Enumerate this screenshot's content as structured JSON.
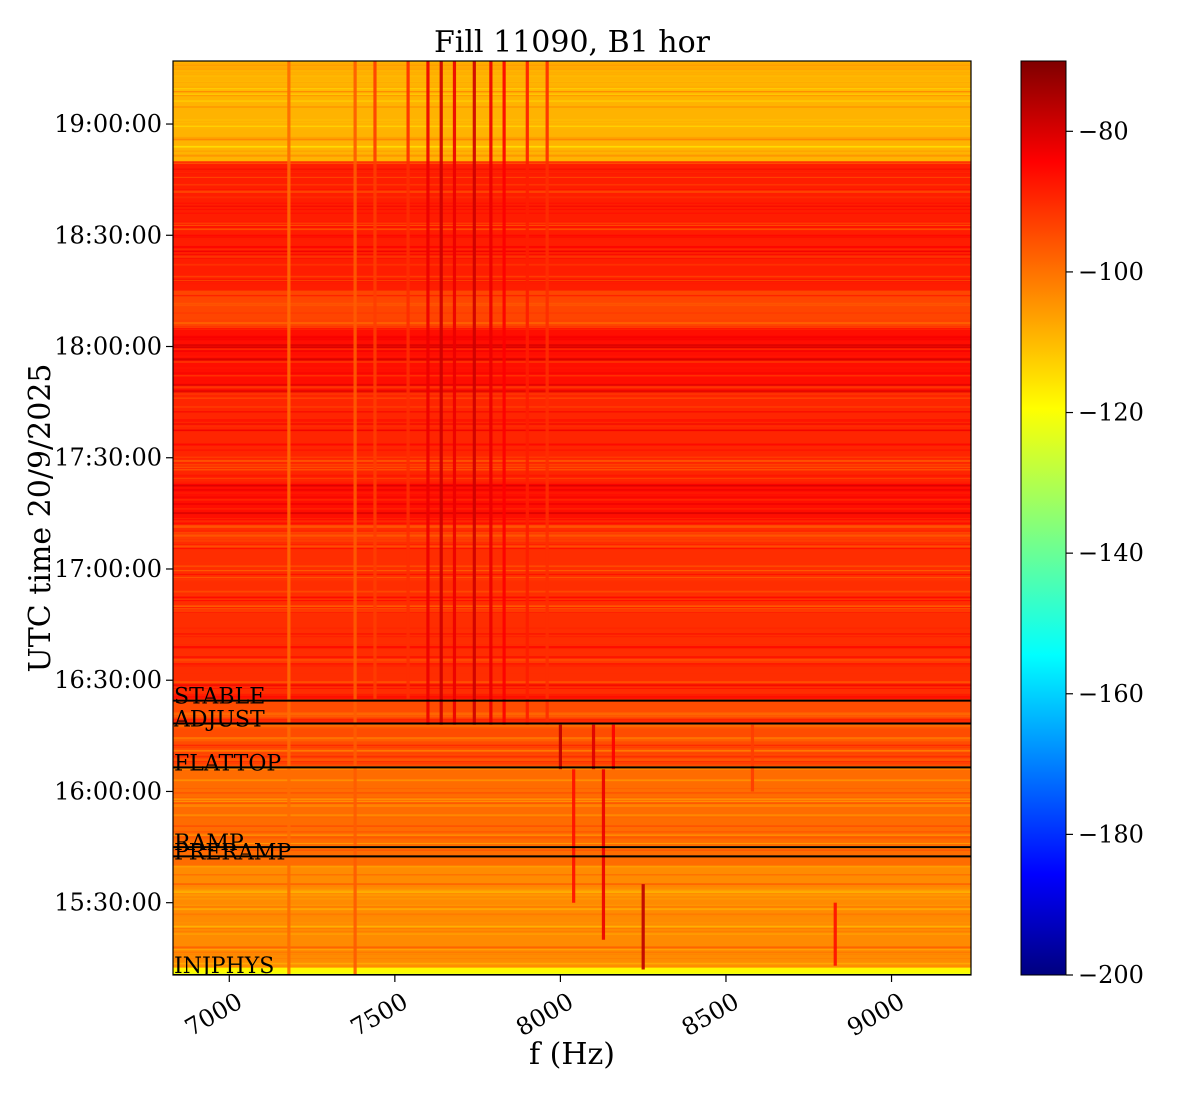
{
  "chart_data": {
    "type": "heatmap",
    "title": "Fill 11090, B1 hor",
    "xlabel": "f (Hz)",
    "ylabel": "UTC time 20/9/2025",
    "xlim": [
      6830,
      9240
    ],
    "ylim": [
      "15:10:30",
      "19:17:00"
    ],
    "x_ticks": [
      {
        "value": 7000,
        "label": "7000"
      },
      {
        "value": 7500,
        "label": "7500"
      },
      {
        "value": 8000,
        "label": "8000"
      },
      {
        "value": 8500,
        "label": "8500"
      },
      {
        "value": 9000,
        "label": "9000"
      }
    ],
    "y_ticks": [
      {
        "value": "15:30:00",
        "label": "15:30:00"
      },
      {
        "value": "16:00:00",
        "label": "16:00:00"
      },
      {
        "value": "16:30:00",
        "label": "16:30:00"
      },
      {
        "value": "17:00:00",
        "label": "17:00:00"
      },
      {
        "value": "17:30:00",
        "label": "17:30:00"
      },
      {
        "value": "18:00:00",
        "label": "18:00:00"
      },
      {
        "value": "18:30:00",
        "label": "18:30:00"
      },
      {
        "value": "19:00:00",
        "label": "19:00:00"
      }
    ],
    "colorbar": {
      "colormap": "jet",
      "range": [
        -200,
        -70
      ],
      "ticks": [
        {
          "value": -80,
          "label": "−80"
        },
        {
          "value": -100,
          "label": "−100"
        },
        {
          "value": -120,
          "label": "−120"
        },
        {
          "value": -140,
          "label": "−140"
        },
        {
          "value": -160,
          "label": "−160"
        },
        {
          "value": -180,
          "label": "−180"
        },
        {
          "value": -200,
          "label": "−200"
        }
      ]
    },
    "phase_markers": [
      {
        "label": "STABLE",
        "time": "16:24:30"
      },
      {
        "label": "ADJUST",
        "time": "16:18:20"
      },
      {
        "label": "FLATTOP",
        "time": "16:06:30"
      },
      {
        "label": "RAMP",
        "time": "15:45:00"
      },
      {
        "label": "PRERAMP",
        "time": "15:42:30"
      },
      {
        "label": "INJPHYS",
        "time": "15:10:30"
      }
    ],
    "intensity_bands": [
      {
        "start": "15:10:30",
        "end": "15:12:30",
        "level": -118
      },
      {
        "start": "15:12:30",
        "end": "15:40:00",
        "level": -104
      },
      {
        "start": "15:40:00",
        "end": "16:06:30",
        "level": -100
      },
      {
        "start": "16:06:30",
        "end": "16:25:00",
        "level": -96
      },
      {
        "start": "16:25:00",
        "end": "17:12:00",
        "level": -92
      },
      {
        "start": "17:12:00",
        "end": "17:23:00",
        "level": -88
      },
      {
        "start": "17:23:00",
        "end": "17:48:00",
        "level": -91
      },
      {
        "start": "17:48:00",
        "end": "18:05:00",
        "level": -88
      },
      {
        "start": "18:05:00",
        "end": "18:15:00",
        "level": -95
      },
      {
        "start": "18:15:00",
        "end": "18:50:00",
        "level": -90
      },
      {
        "start": "18:50:00",
        "end": "19:17:00",
        "level": -109
      }
    ],
    "spectral_lines": [
      {
        "f": 7180,
        "t0": "15:10:30",
        "t1": "19:17:00",
        "level": -100
      },
      {
        "f": 7380,
        "t0": "15:10:30",
        "t1": "19:17:00",
        "level": -98
      },
      {
        "f": 7440,
        "t0": "16:25:00",
        "t1": "19:17:00",
        "level": -94
      },
      {
        "f": 7540,
        "t0": "16:25:00",
        "t1": "19:17:00",
        "level": -92
      },
      {
        "f": 7600,
        "t0": "16:18:00",
        "t1": "19:17:00",
        "level": -84
      },
      {
        "f": 7640,
        "t0": "16:18:00",
        "t1": "19:17:00",
        "level": -80
      },
      {
        "f": 7680,
        "t0": "16:18:00",
        "t1": "19:17:00",
        "level": -84
      },
      {
        "f": 7740,
        "t0": "16:18:00",
        "t1": "19:17:00",
        "level": -80
      },
      {
        "f": 7790,
        "t0": "16:18:00",
        "t1": "19:17:00",
        "level": -84
      },
      {
        "f": 7830,
        "t0": "16:18:00",
        "t1": "19:17:00",
        "level": -86
      },
      {
        "f": 7900,
        "t0": "16:18:00",
        "t1": "19:17:00",
        "level": -90
      },
      {
        "f": 7960,
        "t0": "16:18:00",
        "t1": "19:17:00",
        "level": -92
      },
      {
        "f": 8000,
        "t0": "16:06:00",
        "t1": "16:18:00",
        "level": -78
      },
      {
        "f": 8100,
        "t0": "16:06:00",
        "t1": "16:18:00",
        "level": -82
      },
      {
        "f": 8160,
        "t0": "16:06:00",
        "t1": "16:18:00",
        "level": -86
      },
      {
        "f": 8040,
        "t0": "15:30:00",
        "t1": "16:06:00",
        "level": -88
      },
      {
        "f": 8130,
        "t0": "15:20:00",
        "t1": "16:06:00",
        "level": -84
      },
      {
        "f": 8250,
        "t0": "15:12:00",
        "t1": "15:35:00",
        "level": -78
      },
      {
        "f": 8580,
        "t0": "16:00:00",
        "t1": "16:18:00",
        "level": -94
      },
      {
        "f": 8830,
        "t0": "15:13:00",
        "t1": "15:30:00",
        "level": -88
      }
    ]
  }
}
